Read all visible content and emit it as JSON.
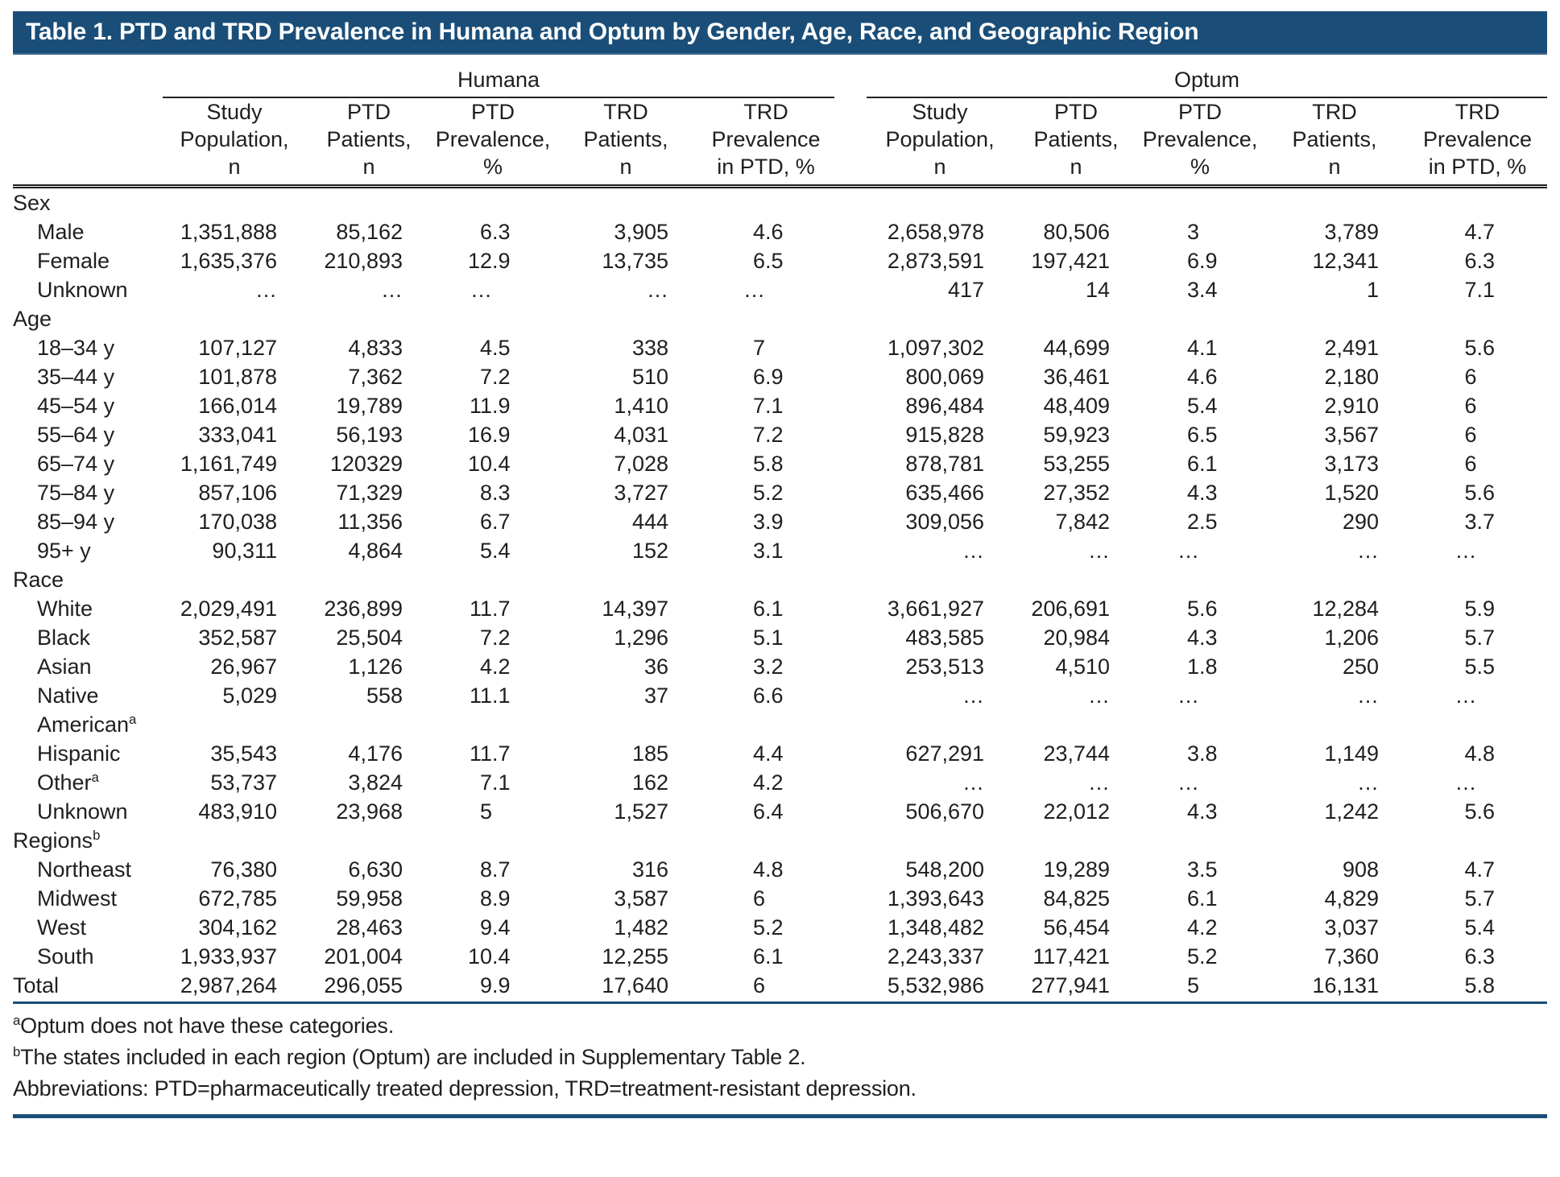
{
  "title": "Table 1. PTD and TRD Prevalence in Humana and Optum by Gender, Age, Race, and Geographic Region",
  "colors": {
    "accent": "#1a4e78",
    "rule_black": "#1c1c1c",
    "title_text": "#ffffff"
  },
  "table": {
    "column_groups": [
      "Humana",
      "Optum"
    ],
    "sub_headers": [
      [
        "Study",
        "Population,",
        "n"
      ],
      [
        "PTD",
        "Patients,",
        "n"
      ],
      [
        "PTD",
        "Prevalence,",
        "%"
      ],
      [
        "TRD",
        "Patients,",
        "n"
      ],
      [
        "TRD",
        "Prevalence",
        "in PTD, %"
      ]
    ],
    "percent_column_indices": [
      2,
      4,
      7,
      9
    ],
    "sections": [
      {
        "label": "Sex",
        "sup": "",
        "rows": [
          {
            "label": "Male",
            "sup": "",
            "cells": [
              "1,351,888",
              "85,162",
              "6.3",
              "3,905",
              "4.6",
              "2,658,978",
              "80,506",
              "3",
              "3,789",
              "4.7"
            ]
          },
          {
            "label": "Female",
            "sup": "",
            "cells": [
              "1,635,376",
              "210,893",
              "12.9",
              "13,735",
              "6.5",
              "2,873,591",
              "197,421",
              "6.9",
              "12,341",
              "6.3"
            ]
          },
          {
            "label": "Unknown",
            "sup": "",
            "cells": [
              "…",
              "…",
              "…",
              "…",
              "…",
              "417",
              "14",
              "3.4",
              "1",
              "7.1"
            ]
          }
        ]
      },
      {
        "label": "Age",
        "sup": "",
        "rows": [
          {
            "label": "18–34 y",
            "sup": "",
            "cells": [
              "107,127",
              "4,833",
              "4.5",
              "338",
              "7",
              "1,097,302",
              "44,699",
              "4.1",
              "2,491",
              "5.6"
            ]
          },
          {
            "label": "35–44 y",
            "sup": "",
            "cells": [
              "101,878",
              "7,362",
              "7.2",
              "510",
              "6.9",
              "800,069",
              "36,461",
              "4.6",
              "2,180",
              "6"
            ]
          },
          {
            "label": "45–54 y",
            "sup": "",
            "cells": [
              "166,014",
              "19,789",
              "11.9",
              "1,410",
              "7.1",
              "896,484",
              "48,409",
              "5.4",
              "2,910",
              "6"
            ]
          },
          {
            "label": "55–64 y",
            "sup": "",
            "cells": [
              "333,041",
              "56,193",
              "16.9",
              "4,031",
              "7.2",
              "915,828",
              "59,923",
              "6.5",
              "3,567",
              "6"
            ]
          },
          {
            "label": "65–74 y",
            "sup": "",
            "cells": [
              "1,161,749",
              "120329",
              "10.4",
              "7,028",
              "5.8",
              "878,781",
              "53,255",
              "6.1",
              "3,173",
              "6"
            ]
          },
          {
            "label": "75–84 y",
            "sup": "",
            "cells": [
              "857,106",
              "71,329",
              "8.3",
              "3,727",
              "5.2",
              "635,466",
              "27,352",
              "4.3",
              "1,520",
              "5.6"
            ]
          },
          {
            "label": "85–94 y",
            "sup": "",
            "cells": [
              "170,038",
              "11,356",
              "6.7",
              "444",
              "3.9",
              "309,056",
              "7,842",
              "2.5",
              "290",
              "3.7"
            ]
          },
          {
            "label": "95+ y",
            "sup": "",
            "cells": [
              "90,311",
              "4,864",
              "5.4",
              "152",
              "3.1",
              "…",
              "…",
              "…",
              "…",
              "…"
            ]
          }
        ]
      },
      {
        "label": "Race",
        "sup": "",
        "rows": [
          {
            "label": "White",
            "sup": "",
            "cells": [
              "2,029,491",
              "236,899",
              "11.7",
              "14,397",
              "6.1",
              "3,661,927",
              "206,691",
              "5.6",
              "12,284",
              "5.9"
            ]
          },
          {
            "label": "Black",
            "sup": "",
            "cells": [
              "352,587",
              "25,504",
              "7.2",
              "1,296",
              "5.1",
              "483,585",
              "20,984",
              "4.3",
              "1,206",
              "5.7"
            ]
          },
          {
            "label": "Asian",
            "sup": "",
            "cells": [
              "26,967",
              "1,126",
              "4.2",
              "36",
              "3.2",
              "253,513",
              "4,510",
              "1.8",
              "250",
              "5.5"
            ]
          },
          {
            "label": "Native American",
            "sup": "a",
            "cells": [
              "5,029",
              "558",
              "11.1",
              "37",
              "6.6",
              "…",
              "…",
              "…",
              "…",
              "…"
            ]
          },
          {
            "label": "Hispanic",
            "sup": "",
            "cells": [
              "35,543",
              "4,176",
              "11.7",
              "185",
              "4.4",
              "627,291",
              "23,744",
              "3.8",
              "1,149",
              "4.8"
            ]
          },
          {
            "label": "Other",
            "sup": "a",
            "cells": [
              "53,737",
              "3,824",
              "7.1",
              "162",
              "4.2",
              "…",
              "…",
              "…",
              "…",
              "…"
            ]
          },
          {
            "label": "Unknown",
            "sup": "",
            "cells": [
              "483,910",
              "23,968",
              "5",
              "1,527",
              "6.4",
              "506,670",
              "22,012",
              "4.3",
              "1,242",
              "5.6"
            ]
          }
        ]
      },
      {
        "label": "Regions",
        "sup": "b",
        "rows": [
          {
            "label": "Northeast",
            "sup": "",
            "cells": [
              "76,380",
              "6,630",
              "8.7",
              "316",
              "4.8",
              "548,200",
              "19,289",
              "3.5",
              "908",
              "4.7"
            ]
          },
          {
            "label": "Midwest",
            "sup": "",
            "cells": [
              "672,785",
              "59,958",
              "8.9",
              "3,587",
              "6",
              "1,393,643",
              "84,825",
              "6.1",
              "4,829",
              "5.7"
            ]
          },
          {
            "label": "West",
            "sup": "",
            "cells": [
              "304,162",
              "28,463",
              "9.4",
              "1,482",
              "5.2",
              "1,348,482",
              "56,454",
              "4.2",
              "3,037",
              "5.4"
            ]
          },
          {
            "label": "South",
            "sup": "",
            "cells": [
              "1,933,937",
              "201,004",
              "10.4",
              "12,255",
              "6.1",
              "2,243,337",
              "117,421",
              "5.2",
              "7,360",
              "6.3"
            ]
          }
        ]
      }
    ],
    "total_row": {
      "label": "Total",
      "sup": "",
      "cells": [
        "2,987,264",
        "296,055",
        "9.9",
        "17,640",
        "6",
        "5,532,986",
        "277,941",
        "5",
        "16,131",
        "5.8"
      ]
    }
  },
  "footnotes": [
    {
      "sup": "a",
      "text": "Optum does not have these categories."
    },
    {
      "sup": "b",
      "text": "The states included in each region (Optum) are included in Supplementary Table 2."
    },
    {
      "sup": "",
      "text": "Abbreviations:  PTD=pharmaceutically treated depression, TRD=treatment-resistant depression."
    }
  ]
}
